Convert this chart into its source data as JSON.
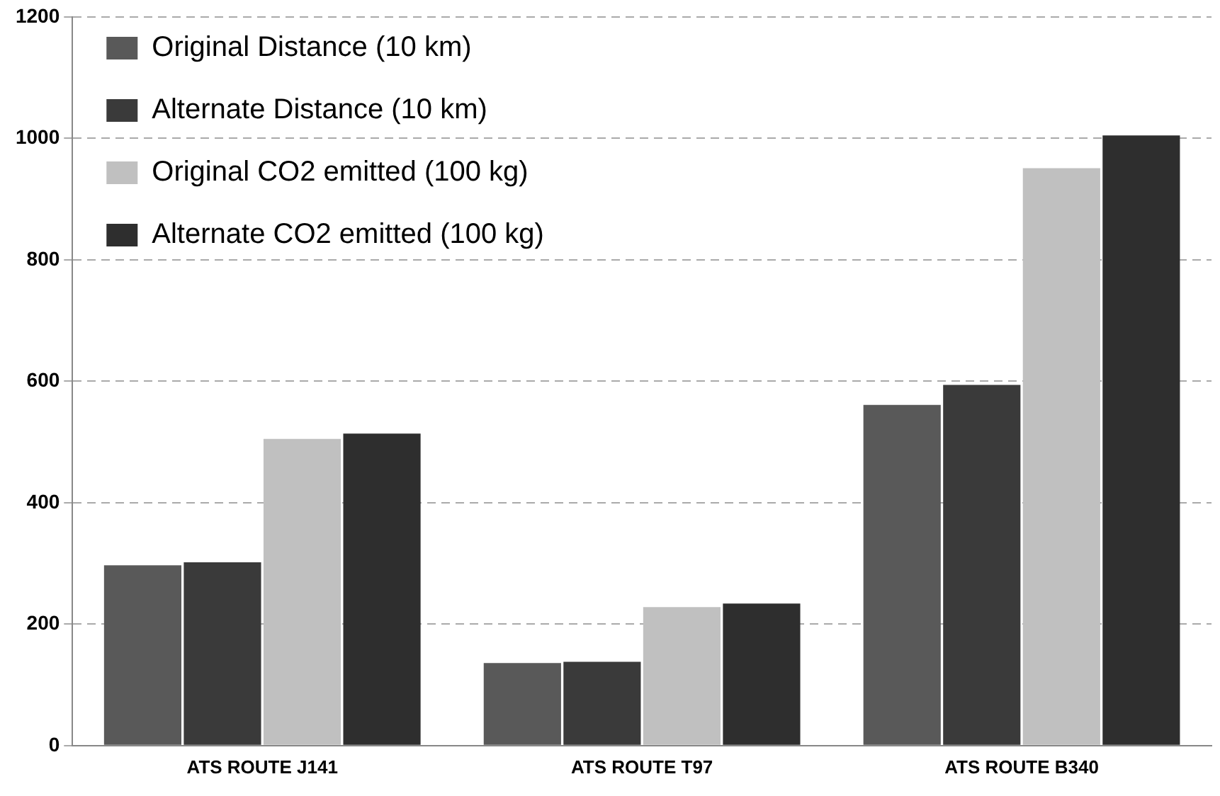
{
  "chart_data": {
    "type": "bar",
    "categories": [
      "ATS ROUTE J141",
      "ATS ROUTE T97",
      "ATS ROUTE B340"
    ],
    "series": [
      {
        "name": "Original Distance (10 km)",
        "color": "#595959",
        "values": [
          297,
          136,
          561
        ]
      },
      {
        "name": "Alternate Distance (10 km)",
        "color": "#3a3a3a",
        "values": [
          302,
          138,
          594
        ]
      },
      {
        "name": "Original CO2 emitted (100 kg)",
        "color": "#c0c0c0",
        "values": [
          505,
          228,
          951
        ]
      },
      {
        "name": "Alternate CO2 emitted (100 kg)",
        "color": "#2e2e2e",
        "values": [
          514,
          234,
          1005
        ]
      }
    ],
    "ylim": [
      0,
      1200
    ],
    "yticks": [
      0,
      200,
      400,
      600,
      800,
      1000,
      1200
    ],
    "grid": "y",
    "legend": "top left"
  }
}
